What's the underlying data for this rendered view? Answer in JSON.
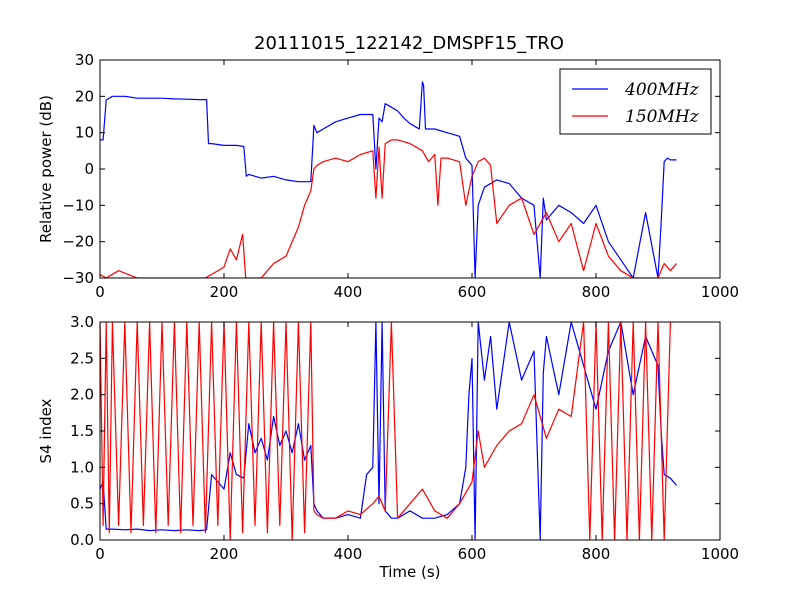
{
  "title": "20111015_122142_DMSPF15_TRO",
  "colors": {
    "series_400": "#0000ff",
    "series_150": "#ff0000",
    "axes": "#000000"
  },
  "chart_data": [
    {
      "type": "line",
      "ylabel": "Relative power (dB)",
      "xlabel": "",
      "xlim": [
        0,
        1000
      ],
      "ylim": [
        -30,
        30
      ],
      "xticks": [
        0,
        200,
        400,
        600,
        800,
        1000
      ],
      "yticks": [
        -30,
        -20,
        -10,
        0,
        10,
        20,
        30
      ],
      "legend": {
        "position": "top-right",
        "entries": [
          "400MHz",
          "150MHz"
        ]
      },
      "grid": false,
      "series": [
        {
          "name": "400MHz",
          "color": "#0000ff",
          "x": [
            0,
            5,
            10,
            20,
            40,
            60,
            80,
            100,
            120,
            140,
            160,
            172,
            175,
            180,
            200,
            220,
            232,
            236,
            240,
            260,
            280,
            300,
            320,
            340,
            345,
            350,
            360,
            380,
            400,
            420,
            440,
            445,
            450,
            455,
            460,
            470,
            480,
            490,
            500,
            510,
            515,
            520,
            522,
            525,
            530,
            540,
            560,
            580,
            590,
            595,
            600,
            605,
            610,
            620,
            640,
            660,
            680,
            700,
            710,
            715,
            720,
            740,
            760,
            780,
            800,
            820,
            840,
            860,
            880,
            900,
            905,
            910,
            915,
            920,
            930
          ],
          "y": [
            8,
            8,
            19,
            20,
            20,
            19.5,
            19.5,
            19.5,
            19.3,
            19.2,
            19.1,
            19.1,
            7,
            7,
            6.5,
            6.5,
            6.2,
            -2,
            -1.5,
            -2.5,
            -2,
            -3,
            -3.5,
            -3.5,
            12,
            10,
            11,
            13,
            14,
            15,
            15,
            0,
            14,
            13,
            18,
            17,
            16,
            14,
            12.5,
            11.5,
            11,
            24,
            23,
            11,
            11,
            11,
            10,
            9,
            3,
            2,
            1,
            -30,
            -10,
            -5,
            -3,
            -4,
            -8,
            -10,
            -30,
            -8,
            -14,
            -10,
            -12,
            -15,
            -10,
            -20,
            -25,
            -30,
            -12,
            -30,
            -15,
            2,
            3,
            2.5,
            2.5
          ]
        },
        {
          "name": "150MHz",
          "color": "#ff0000",
          "x": [
            0,
            10,
            30,
            60,
            100,
            150,
            170,
            180,
            200,
            210,
            220,
            230,
            235,
            240,
            260,
            280,
            300,
            320,
            330,
            340,
            345,
            350,
            360,
            380,
            400,
            420,
            440,
            445,
            450,
            455,
            460,
            470,
            480,
            500,
            520,
            530,
            540,
            545,
            550,
            560,
            580,
            590,
            600,
            610,
            620,
            630,
            640,
            660,
            680,
            700,
            720,
            740,
            760,
            780,
            800,
            820,
            840,
            860,
            880,
            900,
            910,
            920,
            930
          ],
          "y": [
            -29,
            -30,
            -28,
            -30,
            -30,
            -30,
            -30,
            -29,
            -27,
            -22,
            -25,
            -18,
            -30,
            -30,
            -30,
            -26,
            -24,
            -16,
            -10,
            -6,
            0,
            1,
            2,
            3,
            2,
            4,
            5,
            -8,
            6,
            -8,
            7,
            8,
            8,
            7,
            5,
            2,
            4,
            -10,
            3,
            3,
            2,
            -10,
            -2,
            2,
            3,
            1,
            -15,
            -10,
            -8,
            -18,
            -12,
            -20,
            -15,
            -28,
            -15,
            -24,
            -28,
            -30,
            -30,
            -30,
            -26,
            -28,
            -26
          ]
        }
      ]
    },
    {
      "type": "line",
      "ylabel": "S4 index",
      "xlabel": "Time (s)",
      "xlim": [
        0,
        1000
      ],
      "ylim": [
        0,
        3
      ],
      "xticks": [
        0,
        200,
        400,
        600,
        800,
        1000
      ],
      "yticks": [
        0.0,
        0.5,
        1.0,
        1.5,
        2.0,
        2.5,
        3.0
      ],
      "grid": false,
      "series": [
        {
          "name": "400MHz",
          "color": "#0000ff",
          "x": [
            0,
            5,
            10,
            20,
            40,
            60,
            80,
            100,
            120,
            140,
            160,
            172,
            180,
            190,
            200,
            210,
            220,
            232,
            240,
            250,
            260,
            270,
            280,
            290,
            300,
            310,
            320,
            330,
            340,
            345,
            350,
            360,
            380,
            400,
            420,
            430,
            440,
            445,
            450,
            455,
            460,
            470,
            480,
            500,
            520,
            540,
            560,
            580,
            590,
            595,
            600,
            605,
            610,
            620,
            630,
            640,
            650,
            660,
            680,
            700,
            710,
            715,
            720,
            740,
            760,
            780,
            800,
            820,
            840,
            860,
            880,
            900,
            905,
            910,
            920,
            930
          ],
          "y": [
            0.7,
            0.8,
            0.15,
            0.15,
            0.14,
            0.15,
            0.13,
            0.14,
            0.13,
            0.14,
            0.13,
            0.14,
            0.9,
            0.8,
            0.7,
            1.2,
            0.9,
            0.85,
            1.6,
            1.2,
            1.4,
            1.1,
            1.7,
            1.3,
            1.5,
            1.2,
            1.6,
            1.1,
            1.3,
            0.5,
            0.4,
            0.3,
            0.3,
            0.35,
            0.3,
            0.9,
            1.0,
            3.0,
            0.5,
            3.0,
            0.4,
            0.3,
            0.3,
            0.4,
            0.3,
            0.3,
            0.35,
            0.5,
            1.0,
            2.0,
            2.5,
            0.0,
            3.0,
            2.2,
            2.8,
            1.8,
            2.4,
            3.0,
            2.2,
            2.6,
            0.0,
            2.3,
            2.8,
            2.0,
            3.0,
            2.4,
            1.8,
            2.6,
            3.0,
            2.0,
            2.8,
            2.4,
            1.5,
            0.9,
            0.85,
            0.75
          ]
        },
        {
          "name": "150MHz",
          "color": "#ff0000",
          "x": [
            0,
            5,
            10,
            15,
            20,
            30,
            40,
            50,
            60,
            70,
            80,
            90,
            100,
            110,
            120,
            130,
            140,
            150,
            160,
            170,
            180,
            190,
            200,
            210,
            220,
            230,
            240,
            250,
            260,
            270,
            280,
            290,
            300,
            310,
            320,
            330,
            340,
            345,
            350,
            360,
            380,
            400,
            420,
            440,
            450,
            460,
            470,
            480,
            500,
            520,
            540,
            560,
            580,
            600,
            610,
            620,
            640,
            660,
            680,
            700,
            720,
            740,
            760,
            780,
            790,
            800,
            810,
            820,
            830,
            840,
            850,
            860,
            870,
            880,
            890,
            900,
            910,
            920
          ],
          "y": [
            3.0,
            0.2,
            3.0,
            0.1,
            3.0,
            0.2,
            3.0,
            0.1,
            3.0,
            0.2,
            3.0,
            0.1,
            3.0,
            0.2,
            3.0,
            0.1,
            3.0,
            0.2,
            3.0,
            0.1,
            3.0,
            0.2,
            3.0,
            0.0,
            3.0,
            0.1,
            3.0,
            0.2,
            3.0,
            0.1,
            3.0,
            0.2,
            3.0,
            0.0,
            3.0,
            0.1,
            3.0,
            0.4,
            0.35,
            0.3,
            0.3,
            0.4,
            0.35,
            0.5,
            0.6,
            0.4,
            3.0,
            0.3,
            0.5,
            0.7,
            0.4,
            0.3,
            0.5,
            0.8,
            1.5,
            1.0,
            1.3,
            1.5,
            1.6,
            2.0,
            1.4,
            1.8,
            1.7,
            3.0,
            0.0,
            3.0,
            0.0,
            3.0,
            0.0,
            3.0,
            0.0,
            3.0,
            0.0,
            3.0,
            0.0,
            3.0,
            0.0,
            3.0
          ]
        }
      ]
    }
  ]
}
